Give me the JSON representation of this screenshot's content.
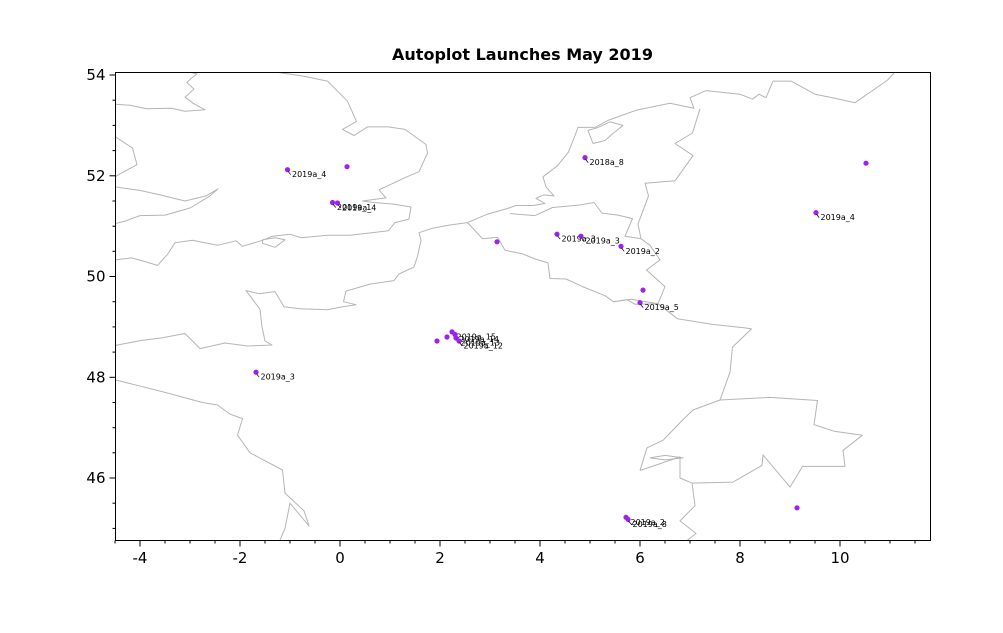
{
  "colors": {
    "background": "#ffffff",
    "frame": "#000000",
    "map_line": "#b5b5b5",
    "marker": "#a020f0",
    "label_text": "#000000",
    "tick_text": "#000000"
  },
  "chart_data": {
    "type": "scatter",
    "title": "Autoplot Launches May 2019",
    "xlabel": "",
    "ylabel": "",
    "xlim": [
      -4.5,
      11.8
    ],
    "ylim": [
      44.77,
      54.06
    ],
    "x_ticks": [
      -4,
      -2,
      0,
      2,
      4,
      6,
      8,
      10
    ],
    "y_ticks": [
      46,
      48,
      50,
      52,
      54
    ],
    "grid": false,
    "legend": false,
    "marker_size": 2.6,
    "points": [
      {
        "lon": -1.05,
        "lat": 52.12,
        "label": "2019a_4"
      },
      {
        "lon": 0.14,
        "lat": 52.18,
        "label": ""
      },
      {
        "lon": -0.15,
        "lat": 51.47,
        "label": "2019a_1"
      },
      {
        "lon": -0.05,
        "lat": 51.46,
        "label": "2019a_4"
      },
      {
        "lon": 4.9,
        "lat": 52.36,
        "label": "2018a_8"
      },
      {
        "lon": 10.52,
        "lat": 52.25,
        "label": ""
      },
      {
        "lon": 9.52,
        "lat": 51.27,
        "label": "2019a_4"
      },
      {
        "lon": 3.14,
        "lat": 50.69,
        "label": ""
      },
      {
        "lon": 4.34,
        "lat": 50.84,
        "label": "2019a_3"
      },
      {
        "lon": 4.82,
        "lat": 50.8,
        "label": "2019a_3"
      },
      {
        "lon": 5.62,
        "lat": 50.6,
        "label": "2019a_2"
      },
      {
        "lon": 6.06,
        "lat": 49.73,
        "label": ""
      },
      {
        "lon": 6.0,
        "lat": 49.48,
        "label": "2019a_5"
      },
      {
        "lon": 1.94,
        "lat": 48.72,
        "label": ""
      },
      {
        "lon": 2.14,
        "lat": 48.8,
        "label": ""
      },
      {
        "lon": 2.24,
        "lat": 48.9,
        "label": "2019a_15"
      },
      {
        "lon": 2.3,
        "lat": 48.85,
        "label": "2019a_14"
      },
      {
        "lon": 2.32,
        "lat": 48.78,
        "label": "2019a_13"
      },
      {
        "lon": 2.38,
        "lat": 48.72,
        "label": "2019a_12"
      },
      {
        "lon": -1.68,
        "lat": 48.1,
        "label": "2019a_3"
      },
      {
        "lon": 5.72,
        "lat": 45.22,
        "label": "2019a_2"
      },
      {
        "lon": 5.76,
        "lat": 45.18,
        "label": "2019a_8"
      },
      {
        "lon": 9.14,
        "lat": 45.41,
        "label": ""
      }
    ],
    "map_outlines": [
      [
        [
          -1.3,
          54.06
        ],
        [
          -0.75,
          53.98
        ],
        [
          -0.25,
          53.88
        ],
        [
          0.0,
          53.63
        ],
        [
          0.15,
          53.48
        ],
        [
          0.33,
          53.08
        ],
        [
          0.05,
          52.92
        ],
        [
          0.28,
          52.8
        ],
        [
          0.55,
          52.97
        ],
        [
          0.97,
          52.97
        ],
        [
          1.3,
          52.92
        ],
        [
          1.72,
          52.62
        ],
        [
          1.75,
          52.45
        ],
        [
          1.58,
          52.08
        ],
        [
          1.27,
          51.95
        ],
        [
          0.95,
          51.8
        ],
        [
          0.78,
          51.72
        ],
        [
          0.92,
          51.56
        ],
        [
          0.45,
          51.5
        ],
        [
          0.68,
          51.47
        ],
        [
          1.05,
          51.44
        ],
        [
          1.42,
          51.38
        ],
        [
          1.38,
          51.14
        ],
        [
          1.1,
          51.07
        ],
        [
          0.97,
          50.91
        ],
        [
          0.55,
          50.86
        ],
        [
          0.2,
          50.82
        ],
        [
          -0.25,
          50.82
        ],
        [
          -0.78,
          50.77
        ],
        [
          -1.0,
          50.84
        ],
        [
          -1.35,
          50.8
        ],
        [
          -1.55,
          50.72
        ],
        [
          -1.95,
          50.6
        ],
        [
          -2.08,
          50.71
        ],
        [
          -2.45,
          50.62
        ],
        [
          -2.95,
          50.72
        ],
        [
          -3.3,
          50.67
        ],
        [
          -3.45,
          50.44
        ],
        [
          -3.65,
          50.22
        ],
        [
          -3.95,
          50.31
        ],
        [
          -4.17,
          50.37
        ],
        [
          -4.5,
          50.33
        ]
      ],
      [
        [
          -3.0,
          54.06
        ],
        [
          -2.86,
          54.02
        ],
        [
          -2.98,
          53.93
        ],
        [
          -3.06,
          53.85
        ],
        [
          -2.92,
          53.72
        ],
        [
          -3.1,
          53.56
        ],
        [
          -2.94,
          53.44
        ],
        [
          -2.7,
          53.31
        ],
        [
          -3.1,
          53.28
        ],
        [
          -3.37,
          53.34
        ],
        [
          -3.87,
          53.33
        ],
        [
          -4.2,
          53.4
        ],
        [
          -4.5,
          53.42
        ]
      ],
      [
        [
          -4.5,
          52.78
        ],
        [
          -4.15,
          52.55
        ],
        [
          -4.06,
          52.22
        ],
        [
          -4.38,
          52.05
        ],
        [
          -4.5,
          51.98
        ]
      ],
      [
        [
          -4.5,
          51.78
        ],
        [
          -4.0,
          51.71
        ],
        [
          -3.6,
          51.62
        ],
        [
          -3.1,
          51.5
        ],
        [
          -2.68,
          51.6
        ],
        [
          -2.44,
          51.74
        ],
        [
          -2.6,
          51.6
        ],
        [
          -3.0,
          51.36
        ],
        [
          -3.5,
          51.22
        ],
        [
          -4.0,
          51.21
        ],
        [
          -4.3,
          51.1
        ],
        [
          -4.5,
          51.05
        ]
      ],
      [
        [
          -1.55,
          50.73
        ],
        [
          -1.3,
          50.77
        ],
        [
          -1.1,
          50.73
        ],
        [
          -1.3,
          50.58
        ],
        [
          -1.55,
          50.66
        ],
        [
          -1.55,
          50.73
        ]
      ],
      [
        [
          2.55,
          51.07
        ],
        [
          2.18,
          51.02
        ],
        [
          1.85,
          50.96
        ],
        [
          1.58,
          50.87
        ],
        [
          1.62,
          50.72
        ],
        [
          1.55,
          50.4
        ],
        [
          1.48,
          50.19
        ],
        [
          1.18,
          50.05
        ],
        [
          1.08,
          49.92
        ],
        [
          0.6,
          49.85
        ],
        [
          0.12,
          49.71
        ],
        [
          0.07,
          49.5
        ],
        [
          0.32,
          49.44
        ],
        [
          0.05,
          49.4
        ],
        [
          -0.25,
          49.34
        ],
        [
          -0.8,
          49.36
        ],
        [
          -1.12,
          49.4
        ],
        [
          -1.3,
          49.7
        ],
        [
          -1.62,
          49.66
        ],
        [
          -1.88,
          49.72
        ],
        [
          -1.6,
          49.35
        ],
        [
          -1.56,
          49.0
        ],
        [
          -1.5,
          48.72
        ],
        [
          -1.36,
          48.64
        ],
        [
          -1.85,
          48.62
        ],
        [
          -2.3,
          48.68
        ],
        [
          -2.8,
          48.57
        ],
        [
          -3.1,
          48.87
        ],
        [
          -3.58,
          48.78
        ],
        [
          -3.98,
          48.73
        ],
        [
          -4.5,
          48.63
        ]
      ],
      [
        [
          -4.5,
          47.95
        ],
        [
          -4.1,
          47.85
        ],
        [
          -3.5,
          47.7
        ],
        [
          -2.75,
          47.5
        ],
        [
          -2.45,
          47.45
        ],
        [
          -2.2,
          47.27
        ],
        [
          -1.95,
          47.18
        ],
        [
          -2.05,
          46.85
        ],
        [
          -1.8,
          46.5
        ],
        [
          -1.15,
          46.16
        ],
        [
          -1.1,
          45.7
        ],
        [
          -0.72,
          45.35
        ],
        [
          -0.62,
          45.05
        ],
        [
          -1.0,
          45.5
        ],
        [
          -1.1,
          45.0
        ],
        [
          -1.2,
          44.77
        ]
      ],
      [
        [
          2.55,
          51.07
        ],
        [
          2.95,
          51.24
        ],
        [
          3.35,
          51.35
        ],
        [
          3.52,
          51.41
        ],
        [
          3.87,
          51.41
        ],
        [
          4.1,
          51.45
        ],
        [
          3.92,
          51.55
        ],
        [
          4.07,
          51.62
        ],
        [
          4.28,
          51.6
        ],
        [
          4.12,
          51.78
        ],
        [
          4.06,
          51.98
        ],
        [
          4.35,
          52.2
        ],
        [
          4.57,
          52.47
        ],
        [
          4.7,
          52.8
        ],
        [
          4.76,
          52.96
        ],
        [
          5.1,
          52.96
        ],
        [
          5.36,
          53.1
        ],
        [
          5.92,
          53.3
        ],
        [
          6.6,
          53.44
        ],
        [
          7.08,
          53.34
        ],
        [
          7.0,
          53.55
        ],
        [
          7.32,
          53.69
        ],
        [
          8.0,
          53.62
        ],
        [
          8.25,
          53.52
        ],
        [
          8.38,
          53.62
        ],
        [
          8.52,
          53.55
        ],
        [
          8.66,
          53.88
        ],
        [
          9.02,
          53.88
        ],
        [
          9.5,
          53.62
        ],
        [
          9.85,
          53.55
        ],
        [
          10.3,
          53.45
        ],
        [
          10.95,
          53.9
        ],
        [
          11.1,
          54.06
        ]
      ],
      [
        [
          5.06,
          52.64
        ],
        [
          5.3,
          52.7
        ],
        [
          5.46,
          52.84
        ],
        [
          5.66,
          53.0
        ],
        [
          5.4,
          53.07
        ],
        [
          5.14,
          52.95
        ],
        [
          4.96,
          52.9
        ],
        [
          5.06,
          52.64
        ]
      ],
      [
        [
          2.55,
          51.07
        ],
        [
          2.85,
          50.75
        ],
        [
          3.15,
          50.78
        ],
        [
          3.3,
          50.52
        ],
        [
          3.65,
          50.45
        ],
        [
          3.9,
          50.35
        ],
        [
          4.16,
          50.27
        ],
        [
          4.2,
          49.96
        ],
        [
          4.52,
          49.95
        ],
        [
          4.85,
          49.8
        ],
        [
          5.3,
          49.62
        ],
        [
          5.47,
          49.5
        ],
        [
          5.82,
          49.55
        ],
        [
          6.36,
          49.46
        ],
        [
          6.75,
          49.16
        ],
        [
          7.45,
          49.05
        ],
        [
          8.1,
          48.98
        ],
        [
          8.23,
          48.96
        ],
        [
          7.85,
          48.6
        ],
        [
          7.8,
          48.1
        ],
        [
          7.6,
          47.55
        ]
      ],
      [
        [
          3.4,
          51.25
        ],
        [
          3.9,
          51.21
        ],
        [
          4.25,
          51.37
        ],
        [
          4.8,
          51.42
        ],
        [
          5.08,
          51.47
        ],
        [
          5.24,
          51.26
        ],
        [
          5.56,
          51.22
        ],
        [
          5.85,
          51.15
        ],
        [
          5.7,
          50.8
        ],
        [
          6.02,
          50.75
        ],
        [
          6.2,
          50.62
        ],
        [
          6.4,
          50.33
        ],
        [
          6.13,
          50.13
        ],
        [
          6.5,
          49.8
        ],
        [
          6.36,
          49.46
        ]
      ],
      [
        [
          7.2,
          53.33
        ],
        [
          7.05,
          52.85
        ],
        [
          6.7,
          52.64
        ],
        [
          7.06,
          52.4
        ],
        [
          6.86,
          52.12
        ],
        [
          6.7,
          51.9
        ],
        [
          6.1,
          51.85
        ],
        [
          6.17,
          51.6
        ],
        [
          5.96,
          51.04
        ],
        [
          6.02,
          50.75
        ]
      ],
      [
        [
          5.47,
          49.5
        ],
        [
          5.74,
          49.54
        ],
        [
          5.9,
          49.45
        ],
        [
          6.36,
          49.46
        ]
      ],
      [
        [
          7.6,
          47.55
        ],
        [
          8.6,
          47.6
        ],
        [
          9.55,
          47.54
        ],
        [
          9.48,
          47.06
        ],
        [
          9.88,
          46.93
        ],
        [
          10.45,
          46.85
        ]
      ],
      [
        [
          6.0,
          46.15
        ],
        [
          6.14,
          46.6
        ],
        [
          6.46,
          46.75
        ],
        [
          6.86,
          47.16
        ],
        [
          7.06,
          47.35
        ],
        [
          7.6,
          47.55
        ]
      ],
      [
        [
          6.0,
          46.15
        ],
        [
          6.8,
          46.42
        ],
        [
          6.8,
          46.0
        ],
        [
          7.04,
          45.9
        ],
        [
          7.86,
          45.92
        ],
        [
          8.44,
          46.25
        ],
        [
          8.46,
          46.46
        ],
        [
          9.0,
          45.82
        ],
        [
          9.25,
          46.23
        ],
        [
          10.1,
          46.23
        ],
        [
          10.06,
          46.55
        ],
        [
          10.45,
          46.85
        ]
      ],
      [
        [
          7.04,
          45.9
        ],
        [
          7.1,
          45.45
        ],
        [
          6.8,
          45.15
        ],
        [
          7.12,
          44.9
        ],
        [
          6.95,
          44.77
        ]
      ],
      [
        [
          6.2,
          46.4
        ],
        [
          6.5,
          46.45
        ],
        [
          6.86,
          46.4
        ],
        [
          6.5,
          46.36
        ],
        [
          6.2,
          46.4
        ]
      ]
    ]
  }
}
